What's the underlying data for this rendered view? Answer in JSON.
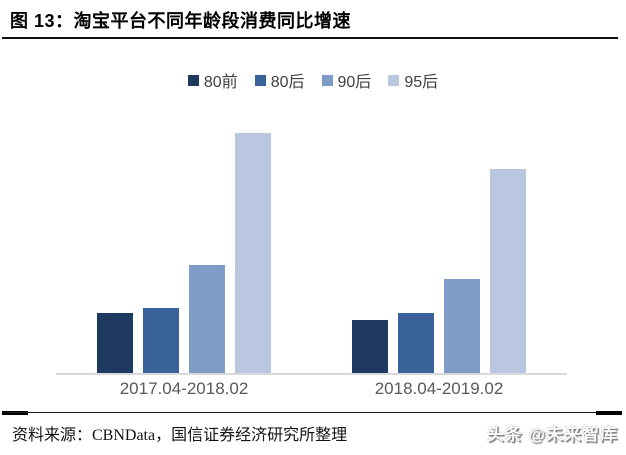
{
  "header": {
    "title": "图 13：淘宝平台不同年龄段消费同比增速"
  },
  "chart_data": {
    "type": "bar",
    "title": "淘宝平台不同年龄段消费同比增速",
    "categories": [
      "2017.04-2018.02",
      "2018.04-2019.02"
    ],
    "series": [
      {
        "name": "80前",
        "color": "#1F3A60",
        "values": [
          25,
          22
        ]
      },
      {
        "name": "80后",
        "color": "#39629A",
        "values": [
          27,
          25
        ]
      },
      {
        "name": "90后",
        "color": "#7F9BC8",
        "values": [
          45,
          39
        ]
      },
      {
        "name": "95后",
        "color": "#BAC7E0",
        "values": [
          100,
          85
        ]
      }
    ],
    "xlabel": "",
    "ylabel": "",
    "y_axis": {
      "visible": false,
      "note": "no y-axis ticks or gridlines shown; values are relative units with tallest bar (95后, 2017.04-2018.02) = 100"
    },
    "legend_position": "top",
    "grid": false,
    "axis_line_color": "#d9d9d9",
    "category_label_color": "#595959"
  },
  "footer": {
    "source": "资料来源：CBNData，国信证券经济研究所整理",
    "watermark": "头条 @未来智库"
  }
}
